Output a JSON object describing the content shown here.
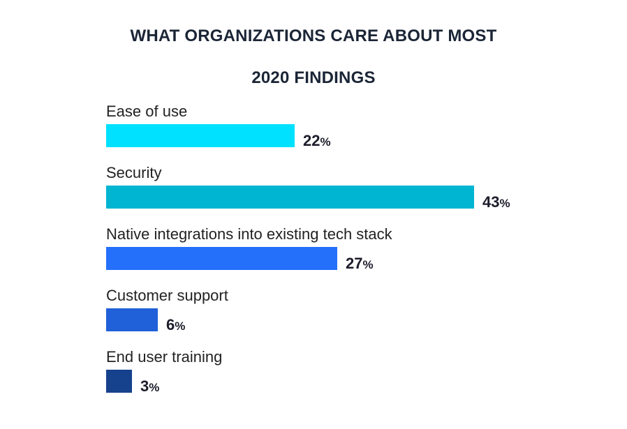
{
  "chart_data": {
    "type": "bar",
    "orientation": "horizontal",
    "title": "WHAT ORGANIZATIONS CARE ABOUT MOST",
    "subtitle": "2020 FINDINGS",
    "categories": [
      "Ease of use",
      "Security",
      "Native integrations into existing tech stack",
      "Customer support",
      "End user training"
    ],
    "values": [
      22,
      43,
      27,
      6,
      3
    ],
    "unit": "%",
    "colors": [
      "#00e1ff",
      "#00b5d1",
      "#2470fb",
      "#2060d8",
      "#16418c"
    ],
    "xlim": [
      0,
      43
    ],
    "grid": false,
    "legend": "none"
  }
}
